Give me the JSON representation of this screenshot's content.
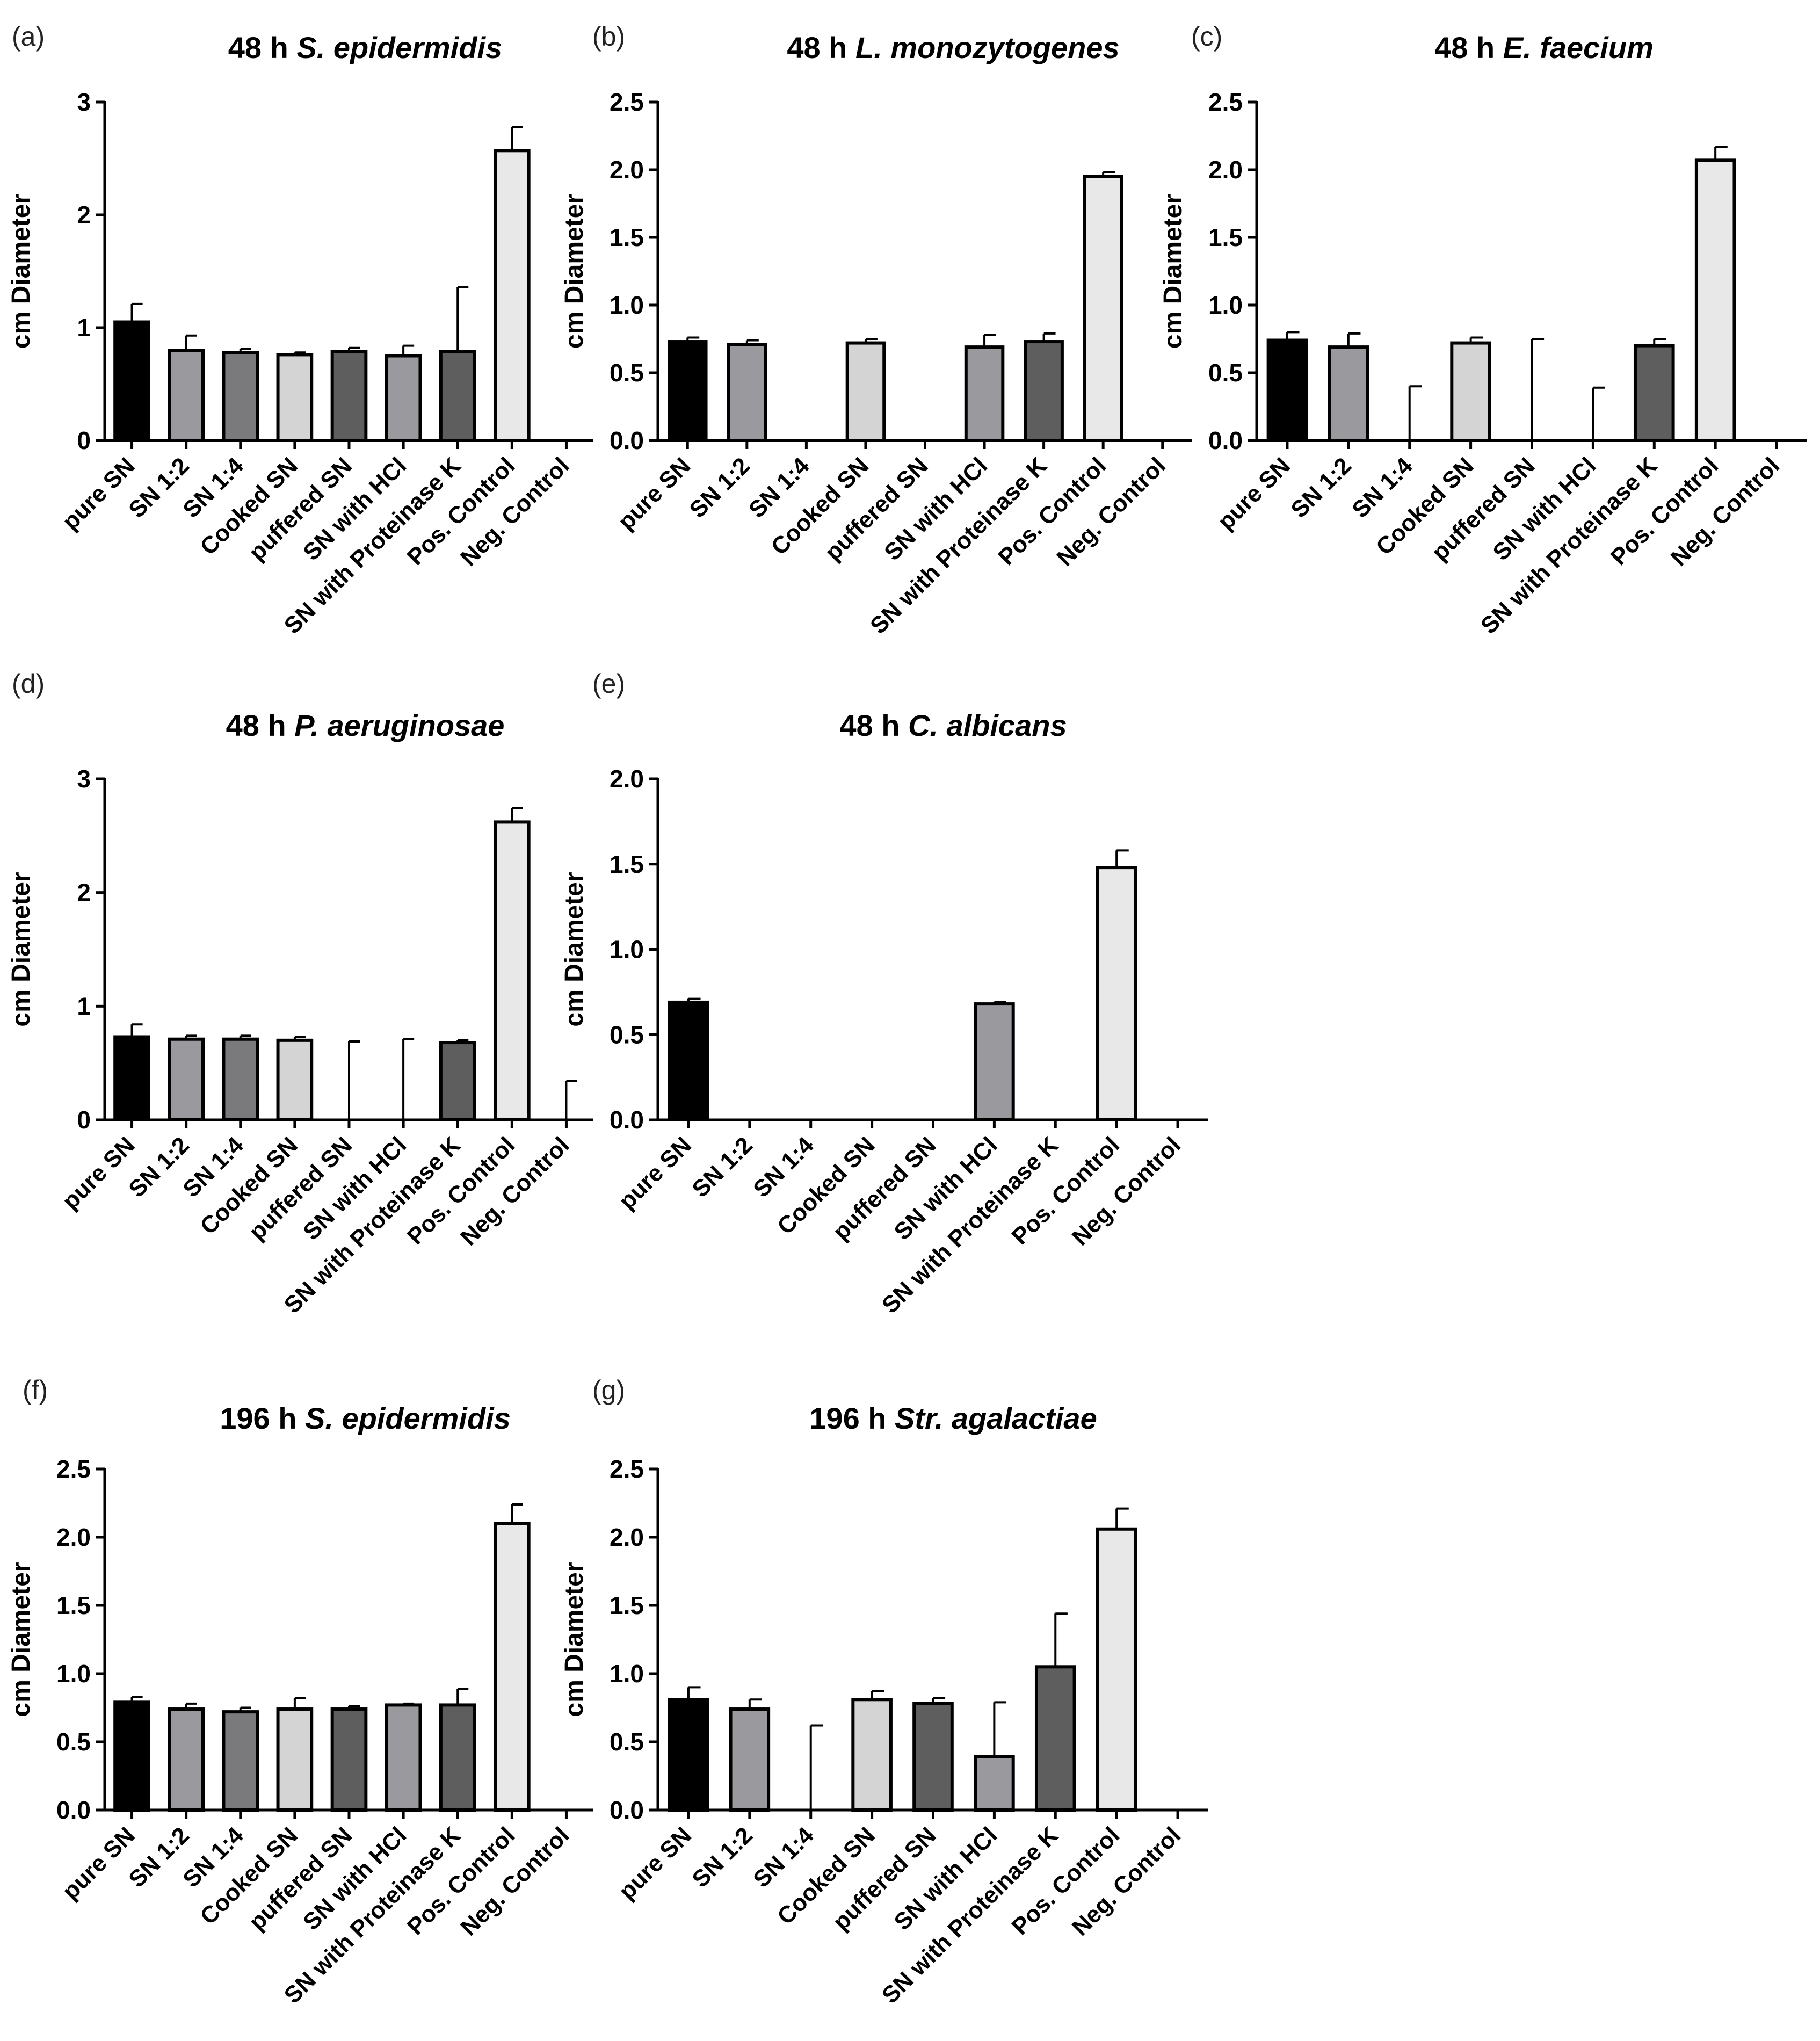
{
  "figure": {
    "categories": [
      "pure SN",
      "SN 1:2",
      "SN 1:4",
      "Cooked SN",
      "puffered SN",
      "SN with HCl",
      "SN with Proteinase K",
      "Pos. Control",
      "Neg. Control"
    ],
    "bar_colors": [
      "#000000",
      "#9a9a9e",
      "#7a7a7c",
      "#d4d4d4",
      "#5e5e5e",
      "#9a9a9e",
      "#5e5e5e",
      "#e8e8e8",
      "#ffffff"
    ]
  },
  "chart_data": [
    {
      "type": "bar",
      "panel": "(a)",
      "title_prefix": "48 h",
      "title_species": "S. epidermidis",
      "ylabel": "cm Diameter",
      "ylim": [
        0,
        3
      ],
      "yticks": [
        "0",
        "1",
        "2",
        "3"
      ],
      "values": [
        1.05,
        0.8,
        0.78,
        0.76,
        0.79,
        0.75,
        0.79,
        2.57,
        0.0
      ],
      "errors": [
        0.16,
        0.13,
        0.03,
        0.02,
        0.03,
        0.09,
        0.57,
        0.21,
        0.0
      ]
    },
    {
      "type": "bar",
      "panel": "(b)",
      "title_prefix": "48 h",
      "title_species": "L. monozytogenes",
      "ylabel": "cm Diameter",
      "ylim": [
        0,
        2.5
      ],
      "yticks": [
        "0.0",
        "0.5",
        "1.0",
        "1.5",
        "2.0",
        "2.5"
      ],
      "values": [
        0.73,
        0.71,
        0.0,
        0.72,
        0.0,
        0.69,
        0.73,
        1.95,
        0.0
      ],
      "errors": [
        0.03,
        0.03,
        0.0,
        0.03,
        0.0,
        0.09,
        0.06,
        0.03,
        0.0
      ]
    },
    {
      "type": "bar",
      "panel": "(c)",
      "title_prefix": "48 h",
      "title_species": "E. faecium",
      "ylabel": "cm Diameter",
      "ylim": [
        0,
        2.5
      ],
      "yticks": [
        "0.0",
        "0.5",
        "1.0",
        "1.5",
        "2.0",
        "2.5"
      ],
      "values": [
        0.74,
        0.69,
        0.0,
        0.72,
        0.0,
        0.0,
        0.7,
        2.07,
        0.0
      ],
      "errors": [
        0.06,
        0.1,
        0.4,
        0.04,
        0.75,
        0.39,
        0.05,
        0.1,
        0.0
      ]
    },
    {
      "type": "bar",
      "panel": "(d)",
      "title_prefix": "48 h",
      "title_species": "P. aeruginosae",
      "ylabel": "cm Diameter",
      "ylim": [
        0,
        3
      ],
      "yticks": [
        "0",
        "1",
        "2",
        "3"
      ],
      "values": [
        0.73,
        0.71,
        0.71,
        0.7,
        0.0,
        0.0,
        0.68,
        2.62,
        0.0
      ],
      "errors": [
        0.11,
        0.03,
        0.03,
        0.03,
        0.69,
        0.71,
        0.02,
        0.12,
        0.34
      ]
    },
    {
      "type": "bar",
      "panel": "(e)",
      "title_prefix": "48 h",
      "title_species": "C. albicans",
      "ylabel": "cm Diameter",
      "ylim": [
        0,
        2
      ],
      "yticks": [
        "0.0",
        "0.5",
        "1.0",
        "1.5",
        "2.0"
      ],
      "values": [
        0.69,
        0.0,
        0.0,
        0.0,
        0.0,
        0.68,
        0.0,
        1.48,
        0.0
      ],
      "errors": [
        0.02,
        0.0,
        0.0,
        0.0,
        0.0,
        0.01,
        0.0,
        0.1,
        0.0
      ]
    },
    {
      "type": "bar",
      "panel": "(f)",
      "title_prefix": "196 h",
      "title_species": "S. epidermidis",
      "ylabel": "cm Diameter",
      "ylim": [
        0,
        2.5
      ],
      "yticks": [
        "0.0",
        "0.5",
        "1.0",
        "1.5",
        "2.0",
        "2.5"
      ],
      "values": [
        0.79,
        0.74,
        0.72,
        0.74,
        0.74,
        0.77,
        0.77,
        2.1,
        0.0
      ],
      "errors": [
        0.04,
        0.04,
        0.03,
        0.08,
        0.02,
        0.01,
        0.12,
        0.14,
        0.0
      ]
    },
    {
      "type": "bar",
      "panel": "(g)",
      "title_prefix": "196 h",
      "title_species": "Str. agalactiae",
      "ylabel": "cm Diameter",
      "ylim": [
        0,
        2.5
      ],
      "yticks": [
        "0.0",
        "0.5",
        "1.0",
        "1.5",
        "2.0",
        "2.5"
      ],
      "values": [
        0.81,
        0.74,
        0.0,
        0.81,
        0.78,
        0.39,
        1.05,
        2.06,
        0.0
      ],
      "errors": [
        0.09,
        0.07,
        0.62,
        0.06,
        0.04,
        0.4,
        0.39,
        0.15,
        0.0
      ]
    }
  ]
}
